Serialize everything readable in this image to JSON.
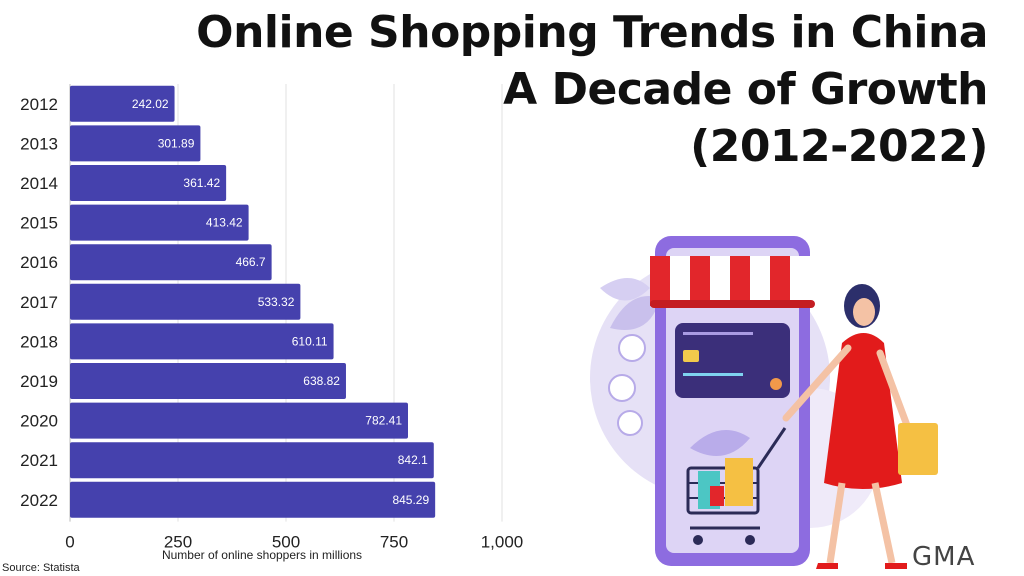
{
  "title_lines": [
    "Online Shopping Trends in China",
    "A Decade of Growth",
    "(2012-2022)"
  ],
  "source": "Source: Statista",
  "brand": "GMA",
  "colors": {
    "bar": "#4541ad",
    "brand": "#444444",
    "brand_accent": "#e32a2a"
  },
  "chart_data": {
    "type": "bar",
    "orientation": "horizontal",
    "categories": [
      "2012",
      "2013",
      "2014",
      "2015",
      "2016",
      "2017",
      "2018",
      "2019",
      "2020",
      "2021",
      "2022"
    ],
    "values": [
      242.02,
      301.89,
      361.42,
      413.42,
      466.7,
      533.32,
      610.11,
      638.82,
      782.41,
      842.1,
      845.29
    ],
    "data_labels": [
      "242.02",
      "301.89",
      "361.42",
      "413.42",
      "466.7",
      "533.32",
      "610.11",
      "638.82",
      "782.41",
      "842.1",
      "845.29"
    ],
    "xlabel": "Number of online shoppers in millions",
    "xlim": [
      0,
      1000
    ],
    "xticks": [
      0,
      250,
      500,
      750,
      1000
    ],
    "xtick_labels": [
      "0",
      "250",
      "500",
      "750",
      "1,000"
    ],
    "grid": true
  }
}
